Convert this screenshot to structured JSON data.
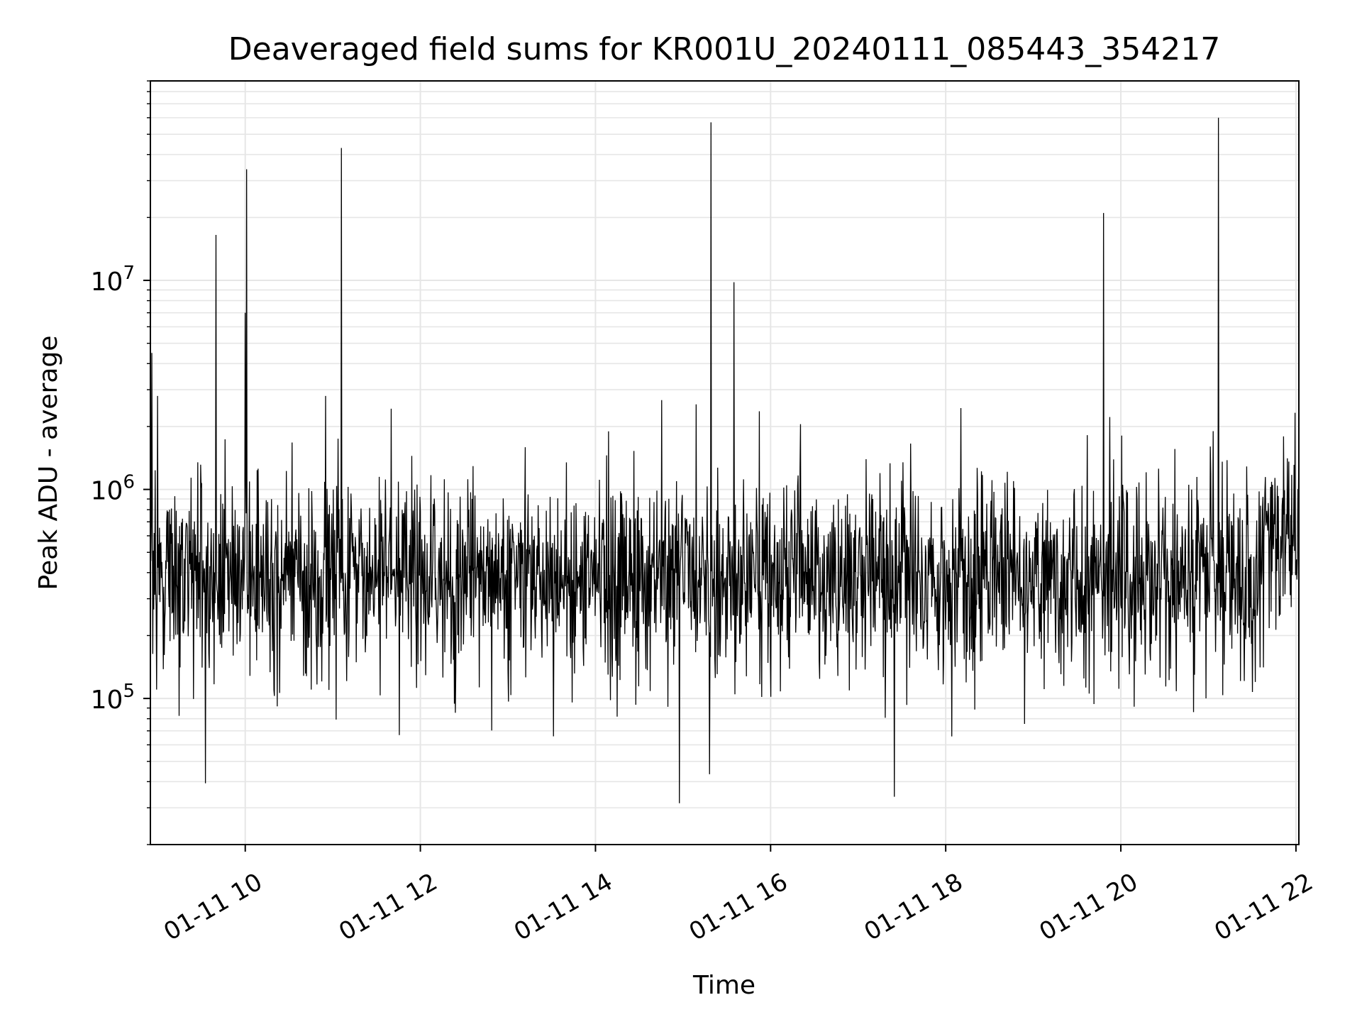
{
  "chart_data": {
    "type": "line",
    "title": "Deaveraged field sums for KR001U_20240111_085443_354217",
    "xlabel": "Time",
    "ylabel": "Peak ADU - average",
    "x_scale": "time",
    "y_scale": "log",
    "xlim": [
      "2024-01-11T08:55",
      "2024-01-11T22:02"
    ],
    "ylim": [
      20000,
      90000000
    ],
    "x_ticks": [
      {
        "value": "2024-01-11T10:00",
        "label": "01-11 10"
      },
      {
        "value": "2024-01-11T12:00",
        "label": "01-11 12"
      },
      {
        "value": "2024-01-11T14:00",
        "label": "01-11 14"
      },
      {
        "value": "2024-01-11T16:00",
        "label": "01-11 16"
      },
      {
        "value": "2024-01-11T18:00",
        "label": "01-11 18"
      },
      {
        "value": "2024-01-11T20:00",
        "label": "01-11 20"
      },
      {
        "value": "2024-01-11T22:00",
        "label": "01-11 22"
      }
    ],
    "y_ticks": [
      {
        "value": 100000,
        "base": "10",
        "exp": "5"
      },
      {
        "value": 1000000,
        "base": "10",
        "exp": "6"
      },
      {
        "value": 10000000,
        "base": "10",
        "exp": "7"
      }
    ],
    "grid": true,
    "legend": "none",
    "line_color": "#000000",
    "grid_color": "#e6e6e6",
    "baseline": {
      "typical_level": 380000,
      "spread_low": 130000,
      "spread_high": 1000000
    },
    "spikes": [
      {
        "x": "2024-01-11T09:40",
        "y": 16500000
      },
      {
        "x": "2024-01-11T10:01",
        "y": 34000000
      },
      {
        "x": "2024-01-11T10:00",
        "y": 7000000
      },
      {
        "x": "2024-01-11T10:55",
        "y": 2800000
      },
      {
        "x": "2024-01-11T11:06",
        "y": 43000000
      },
      {
        "x": "2024-01-11T15:19",
        "y": 57000000
      },
      {
        "x": "2024-01-11T15:35",
        "y": 9800000
      },
      {
        "x": "2024-01-11T19:48",
        "y": 21000000
      },
      {
        "x": "2024-01-11T21:07",
        "y": 60000000
      },
      {
        "x": "2024-01-11T08:56",
        "y": 4500000
      },
      {
        "x": "2024-01-11T09:00",
        "y": 2800000
      }
    ]
  }
}
